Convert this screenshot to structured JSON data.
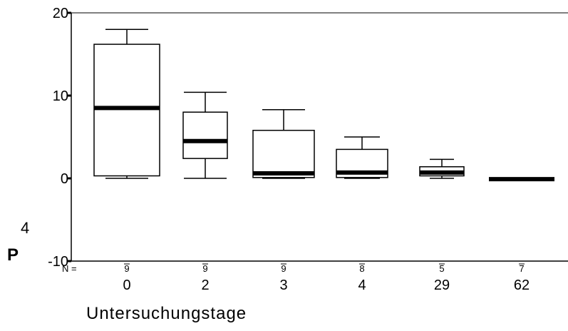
{
  "chart_data": {
    "type": "boxplot",
    "title": "",
    "xlabel": "Untersuchungstage",
    "ylabel_main": "P",
    "ylabel_sub": "4",
    "ylim": [
      -10,
      20
    ],
    "yticks": [
      {
        "value": 20,
        "label": "20"
      },
      {
        "value": 10,
        "label": "10"
      },
      {
        "value": 0,
        "label": "0"
      },
      {
        "value": -10,
        "label": "-10"
      }
    ],
    "n_prefix": "N =",
    "categories": [
      "0",
      "2",
      "3",
      "4",
      "29",
      "62"
    ],
    "n_counts": [
      "9",
      "9",
      "9",
      "8",
      "5",
      "7"
    ],
    "boxes": [
      {
        "whisker_low": 0,
        "q1": 0.3,
        "median": 8.5,
        "q3": 16.2,
        "whisker_high": 18
      },
      {
        "whisker_low": 0,
        "q1": 2.4,
        "median": 4.5,
        "q3": 8,
        "whisker_high": 10.4
      },
      {
        "whisker_low": 0,
        "q1": 0.1,
        "median": 0.6,
        "q3": 5.8,
        "whisker_high": 8.3
      },
      {
        "whisker_low": 0,
        "q1": 0.1,
        "median": 0.7,
        "q3": 3.5,
        "whisker_high": 5
      },
      {
        "whisker_low": 0,
        "q1": 0.3,
        "median": 0.7,
        "q3": 1.4,
        "whisker_high": 2.3
      },
      {
        "whisker_low": -0.1,
        "q1": -0.1,
        "median": -0.1,
        "q3": -0.1,
        "whisker_high": -0.1
      }
    ]
  }
}
